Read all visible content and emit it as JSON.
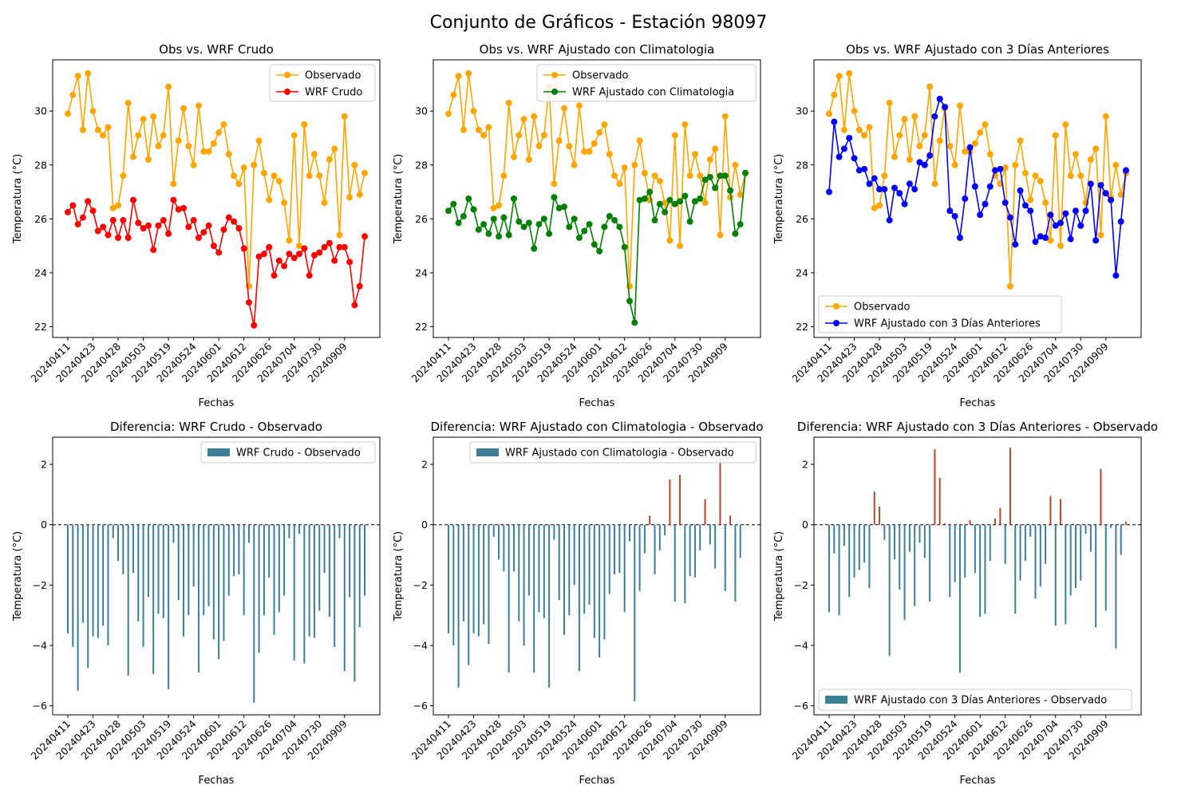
{
  "suptitle": "Conjunto de Gráficos - Estación 98097",
  "colors": {
    "observado": "#ffa500",
    "wrf_crudo": "#ff0000",
    "wrf_clima": "#008000",
    "wrf_3dias": "#0000ff",
    "bar_negative": "#3d7f94",
    "bar_positive": "#b5482d"
  },
  "chart_data": [
    {
      "type": "line",
      "title": "Obs vs. WRF Crudo",
      "xlabel": "Fechas",
      "ylabel": "Temperatura (°C)",
      "xticks": [
        "20240411",
        "20240423",
        "20240428",
        "20240503",
        "20240519",
        "20240524",
        "20240601",
        "20240612",
        "20240626",
        "20240704",
        "20240730",
        "20240909"
      ],
      "ylim": [
        21.6,
        31.9
      ],
      "yticks": [
        22,
        24,
        26,
        28,
        30
      ],
      "legend": "upper right",
      "series": [
        {
          "name": "Observado",
          "color_key": "observado",
          "values": [
            29.9,
            30.6,
            31.3,
            29.3,
            31.4,
            30.0,
            29.3,
            29.1,
            29.4,
            26.4,
            26.5,
            27.6,
            30.3,
            28.3,
            29.1,
            29.7,
            28.2,
            29.8,
            28.7,
            29.1,
            30.9,
            27.3,
            28.9,
            30.1,
            28.7,
            28.0,
            30.2,
            28.5,
            28.5,
            28.8,
            29.2,
            29.5,
            28.4,
            27.6,
            27.3,
            27.9,
            23.5,
            28.0,
            28.9,
            27.7,
            26.7,
            27.6,
            27.4,
            26.6,
            25.2,
            29.1,
            25.0,
            29.5,
            27.6,
            28.4,
            27.6,
            26.6,
            28.2,
            28.6,
            25.4,
            29.8,
            26.8,
            28.0,
            26.9,
            27.7
          ]
        },
        {
          "name": "WRF Crudo",
          "color_key": "wrf_crudo",
          "values": [
            26.25,
            26.5,
            25.8,
            26.05,
            26.65,
            26.3,
            25.55,
            25.7,
            25.4,
            25.95,
            25.3,
            25.95,
            25.3,
            26.7,
            25.85,
            25.65,
            25.75,
            24.85,
            25.75,
            25.95,
            25.45,
            26.7,
            26.35,
            26.4,
            25.7,
            25.95,
            25.3,
            25.5,
            25.75,
            25.0,
            24.75,
            25.6,
            26.05,
            25.9,
            25.65,
            24.9,
            22.9,
            22.05,
            24.6,
            24.7,
            24.95,
            23.9,
            24.45,
            24.25,
            24.7,
            24.55,
            24.7,
            24.9,
            23.9,
            24.65,
            24.75,
            24.95,
            25.1,
            24.45,
            24.95,
            24.95,
            24.4,
            22.8,
            23.5,
            25.35
          ]
        }
      ]
    },
    {
      "type": "line",
      "title": "Obs vs. WRF Ajustado con Climatologia",
      "xlabel": "Fechas",
      "ylabel": "Temperatura (°C)",
      "xticks": [
        "20240411",
        "20240423",
        "20240428",
        "20240503",
        "20240519",
        "20240524",
        "20240601",
        "20240612",
        "20240626",
        "20240704",
        "20240730",
        "20240909"
      ],
      "ylim": [
        21.6,
        31.9
      ],
      "yticks": [
        22,
        24,
        26,
        28,
        30
      ],
      "legend": "upper right",
      "series": [
        {
          "name": "Observado",
          "color_key": "observado",
          "values": [
            29.9,
            30.6,
            31.3,
            29.3,
            31.4,
            30.0,
            29.3,
            29.1,
            29.4,
            26.4,
            26.5,
            27.6,
            30.3,
            28.3,
            29.1,
            29.7,
            28.2,
            29.8,
            28.7,
            29.1,
            30.9,
            27.3,
            28.9,
            30.1,
            28.7,
            28.0,
            30.2,
            28.5,
            28.5,
            28.8,
            29.2,
            29.5,
            28.4,
            27.6,
            27.3,
            27.9,
            23.5,
            28.0,
            28.9,
            27.7,
            26.7,
            27.6,
            27.4,
            26.6,
            25.2,
            29.1,
            25.0,
            29.5,
            27.6,
            28.4,
            27.6,
            26.6,
            28.2,
            28.6,
            25.4,
            29.8,
            26.8,
            28.0,
            26.9,
            27.7
          ]
        },
        {
          "name": "WRF Ajustado con Climatologia",
          "color_key": "wrf_clima",
          "values": [
            26.3,
            26.55,
            25.85,
            26.1,
            26.75,
            26.35,
            25.6,
            25.8,
            25.45,
            26.0,
            25.35,
            26.05,
            25.4,
            26.75,
            25.9,
            25.7,
            25.85,
            24.9,
            25.8,
            26.0,
            25.45,
            26.8,
            26.4,
            26.45,
            25.7,
            26.0,
            25.3,
            25.55,
            25.8,
            25.05,
            24.8,
            25.7,
            26.1,
            25.95,
            25.7,
            24.95,
            22.95,
            22.15,
            26.7,
            26.75,
            27.0,
            25.95,
            26.55,
            26.25,
            26.7,
            26.55,
            26.65,
            26.85,
            25.9,
            26.65,
            26.75,
            27.45,
            27.55,
            27.15,
            27.6,
            27.6,
            27.05,
            25.45,
            25.8,
            27.7
          ]
        }
      ]
    },
    {
      "type": "line",
      "title": "Obs vs. WRF Ajustado con 3 Días Anteriores",
      "xlabel": "Fechas",
      "ylabel": "Temperatura (°C)",
      "xticks": [
        "20240411",
        "20240423",
        "20240428",
        "20240503",
        "20240519",
        "20240524",
        "20240601",
        "20240612",
        "20240626",
        "20240704",
        "20240730",
        "20240909"
      ],
      "ylim": [
        21.6,
        31.9
      ],
      "yticks": [
        22,
        24,
        26,
        28,
        30
      ],
      "legend": "lower left",
      "series": [
        {
          "name": "Observado",
          "color_key": "observado",
          "values": [
            29.9,
            30.6,
            31.3,
            29.3,
            31.4,
            30.0,
            29.3,
            29.1,
            29.4,
            26.4,
            26.5,
            27.6,
            30.3,
            28.3,
            29.1,
            29.7,
            28.2,
            29.8,
            28.7,
            29.1,
            30.9,
            27.3,
            28.9,
            30.1,
            28.7,
            28.0,
            30.2,
            28.5,
            28.5,
            28.8,
            29.2,
            29.5,
            28.4,
            27.6,
            27.3,
            27.9,
            23.5,
            28.0,
            28.9,
            27.7,
            26.7,
            27.6,
            27.4,
            26.6,
            25.2,
            29.1,
            25.0,
            29.5,
            27.6,
            28.4,
            27.6,
            26.6,
            28.2,
            28.6,
            25.4,
            29.8,
            26.8,
            28.0,
            26.9,
            27.7
          ]
        },
        {
          "name": "WRF Ajustado con 3 Días Anteriores",
          "color_key": "wrf_3dias",
          "values": [
            27.0,
            29.6,
            28.3,
            28.6,
            29.0,
            28.25,
            27.8,
            27.85,
            27.3,
            27.5,
            27.1,
            27.1,
            25.95,
            27.15,
            26.95,
            26.55,
            27.3,
            27.1,
            28.1,
            28.0,
            28.35,
            29.8,
            30.45,
            30.15,
            26.3,
            26.1,
            25.3,
            26.75,
            28.65,
            27.2,
            26.15,
            26.55,
            27.2,
            27.8,
            27.85,
            26.6,
            26.05,
            25.05,
            27.05,
            26.5,
            26.3,
            25.15,
            25.35,
            25.3,
            26.15,
            25.75,
            25.85,
            26.2,
            25.25,
            26.3,
            25.75,
            26.3,
            27.3,
            25.2,
            27.25,
            26.95,
            26.7,
            23.9,
            25.9,
            27.8
          ]
        }
      ]
    },
    {
      "type": "bar",
      "title": "Diferencia: WRF Crudo - Observado",
      "xlabel": "Fechas",
      "ylabel": "Temperatura (°C)",
      "xticks": [
        "20240411",
        "20240423",
        "20240428",
        "20240503",
        "20240519",
        "20240524",
        "20240601",
        "20240612",
        "20240626",
        "20240704",
        "20240730",
        "20240909"
      ],
      "ylim": [
        -6.3,
        2.9
      ],
      "yticks": [
        -6,
        -4,
        -2,
        0,
        2
      ],
      "legend": "upper right",
      "series": [
        {
          "name": "WRF Crudo - Observado",
          "values": [
            -3.6,
            -4.05,
            -5.5,
            -3.25,
            -4.75,
            -3.7,
            -3.75,
            -3.35,
            -4.0,
            -0.45,
            -1.2,
            -1.65,
            -5.0,
            -1.6,
            -3.2,
            -4.05,
            -2.4,
            -4.95,
            -2.95,
            -3.1,
            -5.45,
            -0.6,
            -2.5,
            -3.7,
            -3.0,
            -2.05,
            -4.9,
            -3.0,
            -2.7,
            -3.8,
            -4.45,
            -3.85,
            -2.35,
            -1.7,
            -1.65,
            -3.0,
            -0.6,
            -5.9,
            -4.25,
            -3.0,
            -1.75,
            -3.65,
            -2.9,
            -2.35,
            -0.45,
            -4.5,
            -0.3,
            -4.6,
            -3.7,
            -3.75,
            -2.85,
            -1.6,
            -3.05,
            -4.05,
            -0.45,
            -4.85,
            -2.4,
            -5.2,
            -3.4,
            -2.35
          ]
        }
      ]
    },
    {
      "type": "bar",
      "title": "Diferencia: WRF Ajustado con Climatologia - Observado",
      "xlabel": "Fechas",
      "ylabel": "Temperatura (°C)",
      "xticks": [
        "20240411",
        "20240423",
        "20240428",
        "20240503",
        "20240519",
        "20240524",
        "20240601",
        "20240612",
        "20240626",
        "20240704",
        "20240730",
        "20240909"
      ],
      "ylim": [
        -6.3,
        2.9
      ],
      "yticks": [
        -6,
        -4,
        -2,
        0,
        2
      ],
      "legend": "upper right",
      "series": [
        {
          "name": "WRF Ajustado con Climatologia - Observado",
          "values": [
            -3.6,
            -4.0,
            -5.4,
            -3.2,
            -4.65,
            -3.6,
            -3.7,
            -3.3,
            -3.95,
            -0.4,
            -1.15,
            -1.55,
            -4.9,
            -1.55,
            -3.2,
            -4.0,
            -2.35,
            -4.9,
            -2.9,
            -3.1,
            -5.4,
            -0.5,
            -2.5,
            -3.65,
            -3.0,
            -2.0,
            -4.85,
            -2.95,
            -2.65,
            -3.75,
            -4.4,
            -3.8,
            -2.3,
            -1.65,
            -1.6,
            -2.9,
            -0.55,
            -5.85,
            -2.2,
            -0.95,
            0.3,
            -1.65,
            -0.85,
            -0.35,
            1.5,
            -2.55,
            1.65,
            -2.6,
            -1.7,
            -1.75,
            -0.85,
            0.85,
            -0.65,
            -1.45,
            2.2,
            -2.2,
            0.3,
            -2.55,
            -1.1,
            0.0
          ]
        }
      ]
    },
    {
      "type": "bar",
      "title": "Diferencia: WRF Ajustado con 3 Días Anteriores - Observado",
      "xlabel": "Fechas",
      "ylabel": "Temperatura (°C)",
      "xticks": [
        "20240411",
        "20240423",
        "20240428",
        "20240503",
        "20240519",
        "20240524",
        "20240601",
        "20240612",
        "20240626",
        "20240704",
        "20240730",
        "20240909"
      ],
      "ylim": [
        -6.3,
        2.9
      ],
      "yticks": [
        -6,
        -4,
        -2,
        0,
        2
      ],
      "legend": "lower left",
      "series": [
        {
          "name": "WRF Ajustado con 3 Días Anteriores - Observado",
          "values": [
            -2.9,
            -0.95,
            -3.0,
            -0.7,
            -2.4,
            -1.75,
            -1.5,
            -1.25,
            -2.1,
            1.1,
            0.6,
            -0.5,
            -4.35,
            -1.15,
            -2.15,
            -3.15,
            -0.9,
            -2.7,
            -0.6,
            -1.1,
            -2.55,
            2.5,
            1.55,
            0.05,
            -2.4,
            -1.9,
            -4.9,
            -1.75,
            0.15,
            -1.6,
            -3.05,
            -2.95,
            -1.2,
            0.2,
            0.55,
            -1.3,
            2.55,
            -2.95,
            -1.85,
            -1.2,
            -0.4,
            -2.45,
            -2.05,
            -1.3,
            0.95,
            -3.35,
            0.85,
            -3.3,
            -2.35,
            -2.1,
            -1.85,
            -0.3,
            -0.9,
            -3.4,
            1.85,
            -2.85,
            -0.1,
            -4.1,
            -1.0,
            0.1
          ]
        }
      ]
    }
  ]
}
